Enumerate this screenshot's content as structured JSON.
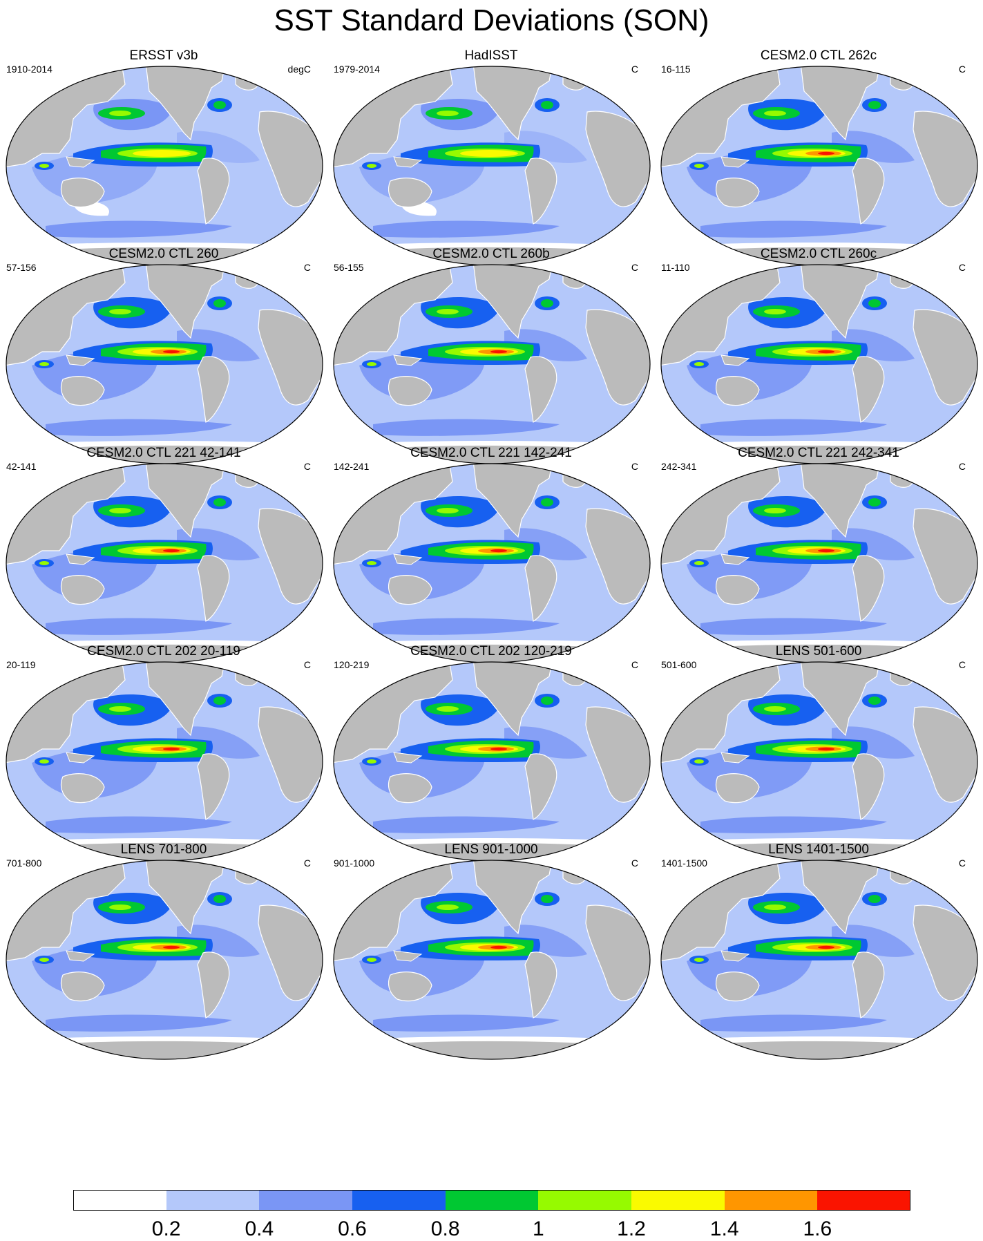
{
  "title": "SST Standard Deviations (SON)",
  "panels": [
    {
      "title": "ERSST v3b",
      "period": "1910-2014",
      "units": "degC"
    },
    {
      "title": "HadISST",
      "period": "1979-2014",
      "units": "C"
    },
    {
      "title": "CESM2.0 CTL 262c",
      "period": "16-115",
      "units": "C"
    },
    {
      "title": "CESM2.0 CTL 260",
      "period": "57-156",
      "units": "C"
    },
    {
      "title": "CESM2.0 CTL 260b",
      "period": "56-155",
      "units": "C"
    },
    {
      "title": "CESM2.0 CTL 260c",
      "period": "11-110",
      "units": "C"
    },
    {
      "title": "CESM2.0 CTL 221 42-141",
      "period": "42-141",
      "units": "C"
    },
    {
      "title": "CESM2.0 CTL 221 142-241",
      "period": "142-241",
      "units": "C"
    },
    {
      "title": "CESM2.0 CTL 221 242-341",
      "period": "242-341",
      "units": "C"
    },
    {
      "title": "CESM2.0 CTL 202 20-119",
      "period": "20-119",
      "units": "C"
    },
    {
      "title": "CESM2.0 CTL 202 120-219",
      "period": "120-219",
      "units": "C"
    },
    {
      "title": "LENS 501-600",
      "period": "501-600",
      "units": "C"
    },
    {
      "title": "LENS 701-800",
      "period": "701-800",
      "units": "C"
    },
    {
      "title": "LENS 901-1000",
      "period": "901-1000",
      "units": "C"
    },
    {
      "title": "LENS 1401-1500",
      "period": "1401-1500",
      "units": "C"
    }
  ],
  "colorbar": {
    "labels": [
      "0.2",
      "0.4",
      "0.6",
      "0.8",
      "1",
      "1.2",
      "1.4",
      "1.6"
    ],
    "colors": [
      "#ffffff",
      "#b4c8fa",
      "#7a96f5",
      "#1760f0",
      "#00c832",
      "#96fa00",
      "#fafa00",
      "#ff9600",
      "#fa1400"
    ]
  },
  "colors": {
    "land": "#bbbbbb",
    "ocean_base": "#b4c8fa"
  }
}
